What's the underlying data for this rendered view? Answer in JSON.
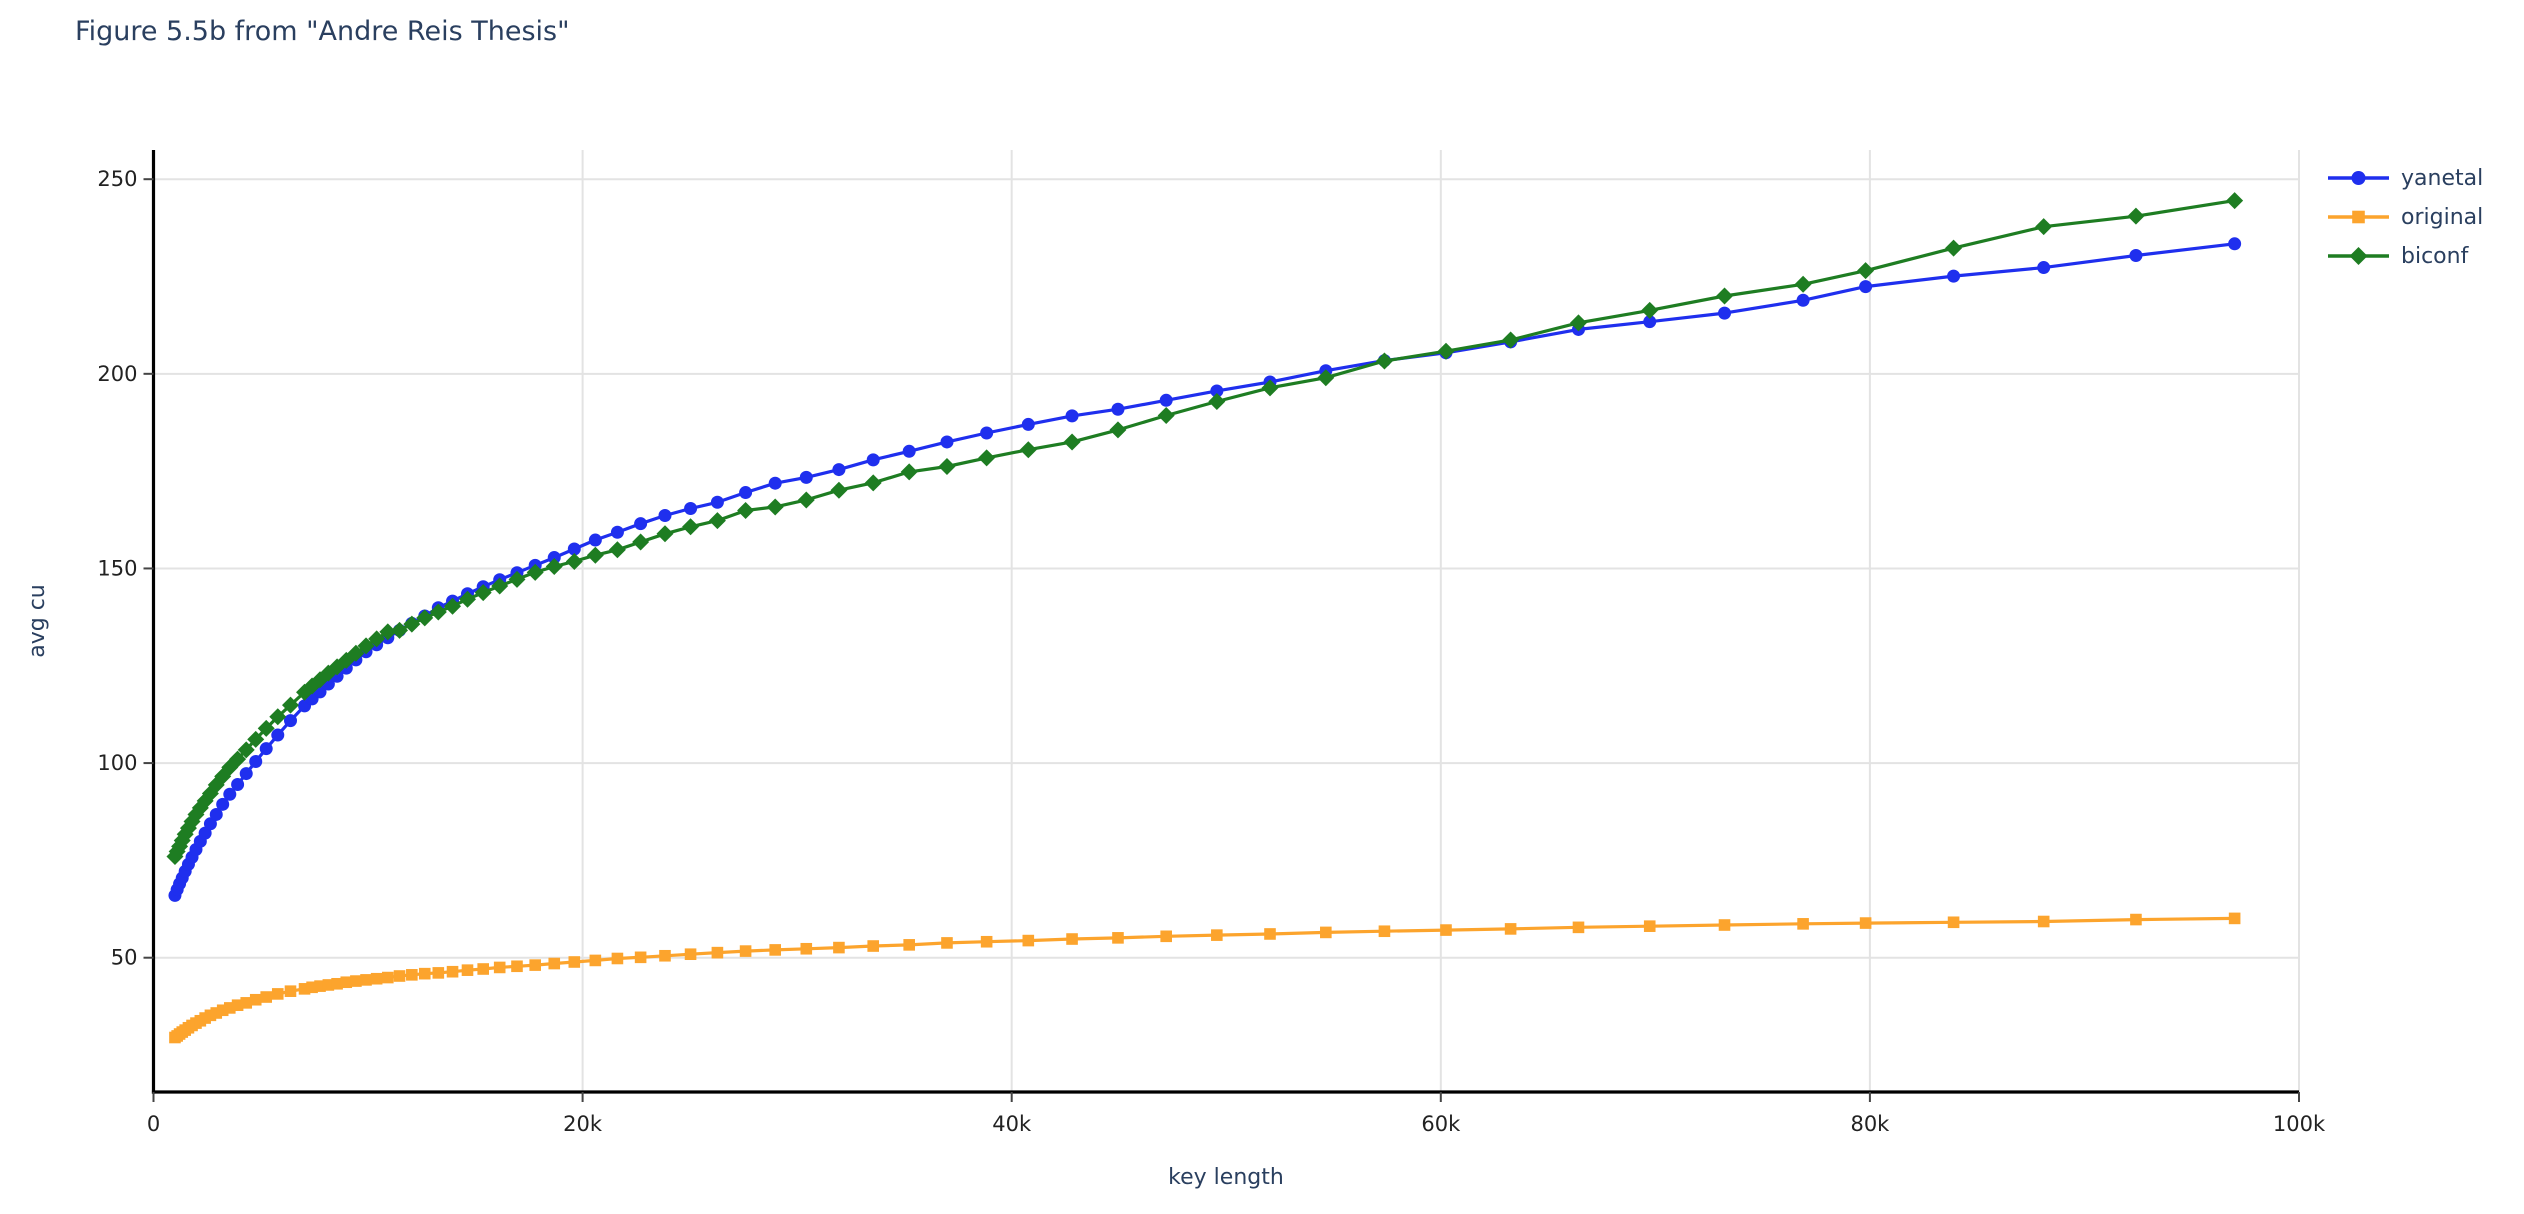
{
  "title": "Figure 5.5b from \"Andre Reis Thesis\"",
  "colors": {
    "title_text": "#2a3f5f",
    "axis_label_text": "#2a3f5f",
    "legend_text": "#2a3f5f",
    "tick_text": "#222222",
    "axis_line": "#000000",
    "gridline": "#e3e3e3",
    "background": "#ffffff"
  },
  "chart_data": {
    "type": "line",
    "title": "Figure 5.5b from \"Andre Reis Thesis\"",
    "xlabel": "key length",
    "ylabel": "avg cu",
    "xlim": [
      0,
      100000
    ],
    "ylim": [
      15.5,
      257.5
    ],
    "grid": true,
    "legend_position": "top-right",
    "xticks": {
      "values": [
        0,
        20000,
        40000,
        60000,
        80000,
        100000
      ],
      "labels": [
        "0",
        "20k",
        "40k",
        "60k",
        "80k",
        "100k"
      ]
    },
    "yticks": {
      "values": [
        50,
        100,
        150,
        200,
        250
      ],
      "labels": [
        "50",
        "100",
        "150",
        "200",
        "250"
      ]
    },
    "x": [
      1000,
      1103,
      1216,
      1340,
      1477,
      1629,
      1796,
      1980,
      2183,
      2407,
      2653,
      2925,
      3225,
      3556,
      3920,
      4322,
      4765,
      5253,
      5792,
      6385,
      7040,
      7392,
      7762,
      8150,
      8557,
      8985,
      9434,
      9906,
      10401,
      10921,
      11467,
      12041,
      12643,
      13275,
      13938,
      14635,
      15367,
      16136,
      16942,
      17790,
      18679,
      19613,
      20594,
      21623,
      22704,
      23840,
      25032,
      26283,
      27597,
      28977,
      30426,
      31947,
      33545,
      35222,
      36983,
      38832,
      40774,
      42813,
      44953,
      47201,
      49561,
      52039,
      54641,
      57373,
      60242,
      63254,
      66417,
      69738,
      73224,
      76886,
      79800,
      83900,
      88100,
      92400,
      97000
    ],
    "series": [
      {
        "name": "yanetal",
        "marker": "circle",
        "color": "#1f2fee",
        "y": [
          66,
          67.5,
          69,
          70.5,
          72.2,
          74,
          75.8,
          77.8,
          79.9,
          82,
          84.4,
          86.8,
          89.4,
          92,
          94.5,
          97.3,
          100.4,
          103.7,
          107.2,
          110.9,
          114.7,
          116.5,
          118.3,
          120.3,
          122.3,
          124.4,
          126.5,
          128.6,
          130.4,
          132.2,
          134.1,
          135.9,
          137.8,
          139.9,
          141.6,
          143.5,
          145.3,
          147.1,
          148.9,
          150.8,
          152.8,
          155,
          157.3,
          159.3,
          161.5,
          163.6,
          165.4,
          167,
          169.5,
          171.9,
          173.4,
          175.4,
          177.9,
          180.1,
          182.5,
          184.8,
          187,
          189.2,
          190.9,
          193.2,
          195.6,
          197.9,
          200.8,
          203.4,
          205.4,
          208.2,
          211.4,
          213.4,
          215.6,
          218.9,
          222.4,
          225.1,
          227.3,
          230.4,
          233.4
        ]
      },
      {
        "name": "original",
        "marker": "square",
        "color": "#fca42d",
        "y": [
          29.5,
          29.9,
          30.4,
          30.9,
          31.4,
          32,
          32.6,
          33.2,
          33.8,
          34.5,
          35.2,
          35.8,
          36.5,
          37.1,
          37.8,
          38.4,
          39.2,
          39.9,
          40.7,
          41.4,
          42,
          42.4,
          42.7,
          43,
          43.3,
          43.7,
          44,
          44.3,
          44.6,
          44.9,
          45.3,
          45.6,
          45.9,
          46.1,
          46.4,
          46.8,
          47.1,
          47.5,
          47.8,
          48.1,
          48.5,
          48.9,
          49.3,
          49.8,
          50.1,
          50.5,
          50.9,
          51.3,
          51.7,
          52,
          52.3,
          52.6,
          53,
          53.3,
          53.8,
          54.1,
          54.4,
          54.8,
          55.1,
          55.5,
          55.8,
          56.1,
          56.5,
          56.8,
          57.1,
          57.4,
          57.8,
          58.1,
          58.4,
          58.7,
          58.9,
          59.1,
          59.3,
          59.8,
          60.1
        ]
      },
      {
        "name": "biconf",
        "marker": "diamond",
        "color": "#1e7d22",
        "y": [
          76,
          77.3,
          78.6,
          80.1,
          81.7,
          83.3,
          85,
          86.8,
          88.5,
          90.3,
          92.2,
          94.4,
          96.6,
          98.9,
          101,
          103.4,
          106.1,
          108.9,
          111.9,
          114.9,
          118.2,
          119.8,
          121.4,
          123.1,
          124.7,
          126.4,
          128.2,
          130.1,
          131.9,
          133.7,
          134.1,
          135.7,
          137.3,
          138.8,
          140.3,
          142.1,
          143.8,
          145.5,
          147.2,
          149,
          150.5,
          151.8,
          153.4,
          154.8,
          156.8,
          158.9,
          160.7,
          162.3,
          164.9,
          165.8,
          167.6,
          170.1,
          172,
          174.8,
          176.2,
          178.4,
          180.5,
          182.5,
          185.6,
          189.3,
          192.9,
          196.4,
          199,
          203.3,
          205.8,
          208.7,
          213.1,
          216.3,
          220,
          223,
          226.5,
          232.3,
          237.8,
          240.5,
          244.5
        ]
      }
    ]
  }
}
